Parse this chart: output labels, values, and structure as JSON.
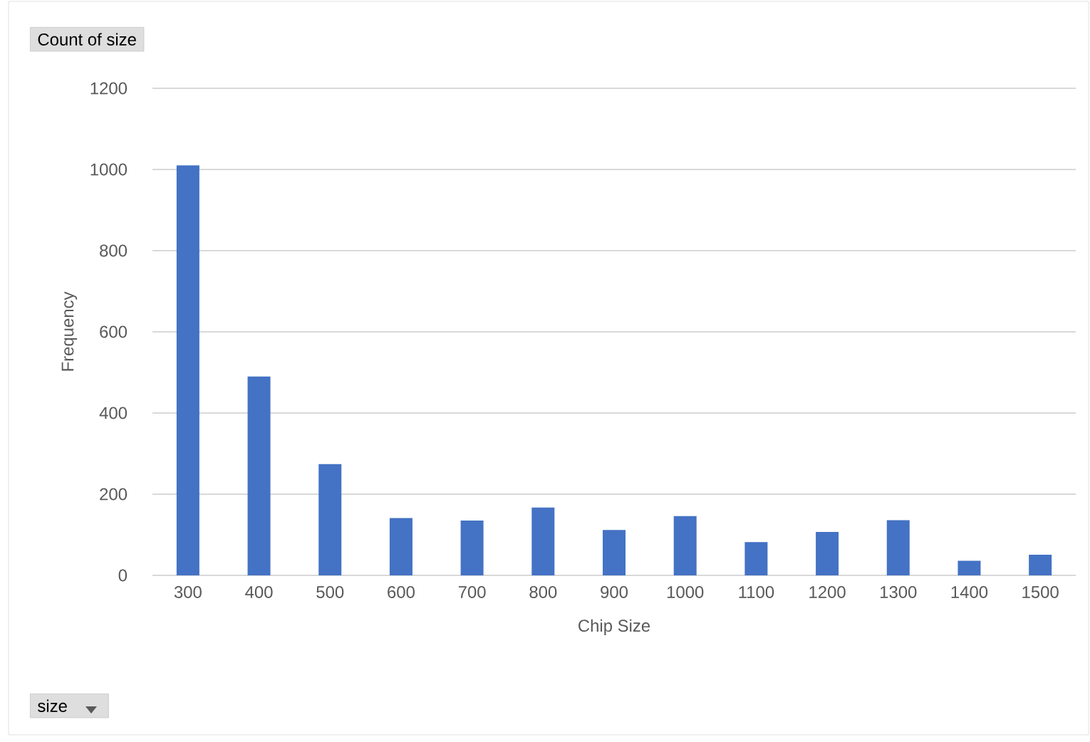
{
  "chart_data": {
    "type": "bar",
    "categories": [
      "300",
      "400",
      "500",
      "600",
      "700",
      "800",
      "900",
      "1000",
      "1100",
      "1200",
      "1300",
      "1400",
      "1500"
    ],
    "values": [
      1010,
      490,
      274,
      141,
      135,
      167,
      112,
      146,
      82,
      107,
      136,
      36,
      51
    ],
    "color": "#4472c4",
    "xlabel": "Chip Size",
    "ylabel": "Frequency",
    "ylim": [
      0,
      1200
    ],
    "yticks": [
      0,
      200,
      400,
      600,
      800,
      1000,
      1200
    ],
    "grid": "y",
    "annotations": [
      "Count of size",
      "size"
    ]
  }
}
